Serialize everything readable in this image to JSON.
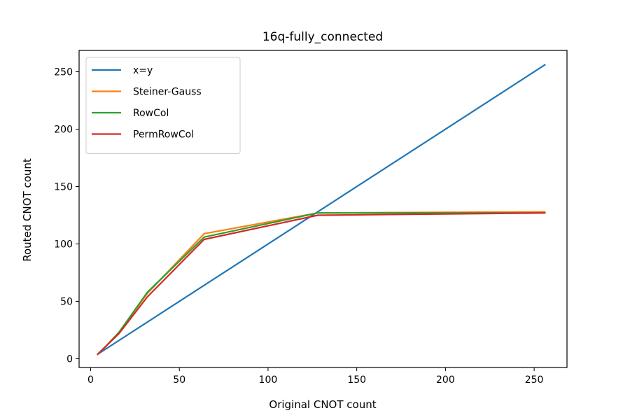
{
  "chart_data": {
    "type": "line",
    "title": "16q-fully_connected",
    "xlabel": "Original CNOT count",
    "ylabel": "Routed CNOT count",
    "xlim": [
      -6.5,
      268.5
    ],
    "ylim": [
      -7.6,
      268.6
    ],
    "xticks": [
      0,
      50,
      100,
      150,
      200,
      250
    ],
    "yticks": [
      0,
      50,
      100,
      150,
      200,
      250
    ],
    "grid": false,
    "legend_position": "upper-left",
    "series": [
      {
        "name": "x=y",
        "color": "#1f77b4",
        "x": [
          4,
          256
        ],
        "y": [
          4,
          256
        ]
      },
      {
        "name": "Steiner-Gauss",
        "color": "#ff7f0e",
        "x": [
          4,
          8,
          16,
          32,
          64,
          128,
          256
        ],
        "y": [
          4,
          10,
          23,
          57,
          109,
          127,
          128
        ]
      },
      {
        "name": "RowCol",
        "color": "#2ca02c",
        "x": [
          4,
          8,
          16,
          32,
          64,
          128,
          256
        ],
        "y": [
          4,
          10,
          23,
          58,
          106,
          127,
          127
        ]
      },
      {
        "name": "PermRowCol",
        "color": "#d62728",
        "x": [
          4,
          8,
          16,
          32,
          64,
          128,
          256
        ],
        "y": [
          4,
          10,
          22,
          54,
          104,
          125,
          127
        ]
      }
    ]
  }
}
